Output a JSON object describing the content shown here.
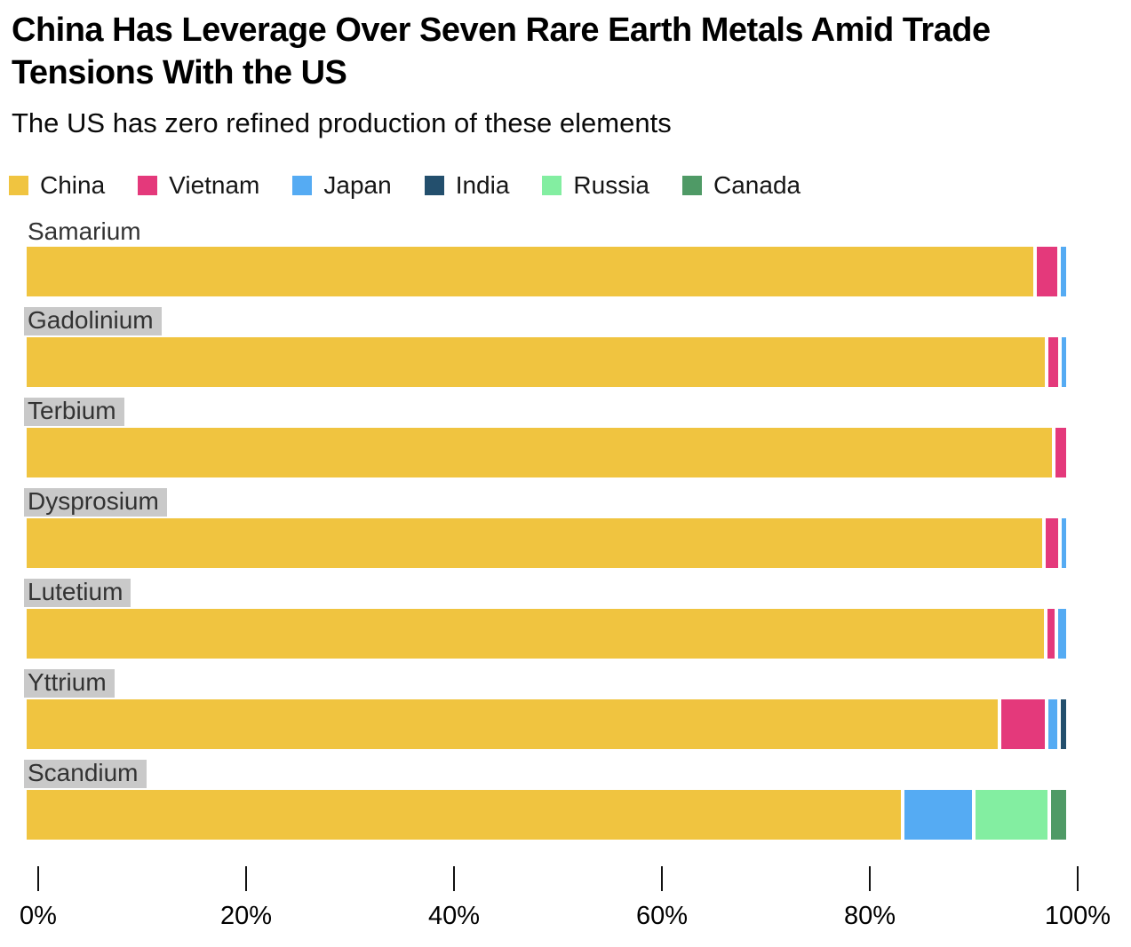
{
  "header": {
    "title": "China Has Leverage Over Seven Rare Earth Metals Amid Trade Tensions With the US",
    "title_lines": [
      "China Has Leverage Over Seven Rare Earth Metals Amid Trade",
      "Tensions With the US"
    ],
    "subtitle": "The US has zero refined production of these elements"
  },
  "colors": {
    "china": "#F0C440",
    "vietnam": "#E4397B",
    "japan": "#55ABF3",
    "india": "#234F6D",
    "russia": "#83EEA1",
    "canada": "#4F9A66",
    "label_highlight_bg": "#C9C9C9"
  },
  "chart_data": {
    "type": "bar",
    "orientation": "horizontal",
    "stacked": true,
    "unit": "percent",
    "title": "China Has Leverage Over Seven Rare Earth Metals Amid Trade Tensions With the US",
    "subtitle": "The US has zero refined production of these elements",
    "legend_position": "top",
    "grid": false,
    "categories": [
      "Samarium",
      "Gadolinium",
      "Terbium",
      "Dysprosium",
      "Lutetium",
      "Yttrium",
      "Scandium"
    ],
    "label_highlight": [
      false,
      true,
      true,
      true,
      true,
      true,
      true
    ],
    "series": [
      {
        "name": "China",
        "color": "#F0C440",
        "values": [
          97.5,
          98.6,
          99.0,
          98.4,
          98.5,
          94.1,
          85.0
        ]
      },
      {
        "name": "Vietnam",
        "color": "#E4397B",
        "values": [
          2.0,
          1.0,
          1.0,
          1.2,
          0.7,
          4.2,
          0
        ]
      },
      {
        "name": "Japan",
        "color": "#55ABF3",
        "values": [
          0.5,
          0.4,
          0,
          0.4,
          0.8,
          0.9,
          6.5
        ]
      },
      {
        "name": "India",
        "color": "#234F6D",
        "values": [
          0,
          0,
          0,
          0,
          0,
          0.5,
          0
        ]
      },
      {
        "name": "Russia",
        "color": "#83EEA1",
        "values": [
          0,
          0,
          0,
          0,
          0,
          0,
          7.0
        ]
      },
      {
        "name": "Canada",
        "color": "#4F9A66",
        "values": [
          0,
          0,
          0,
          0,
          0,
          0,
          1.5
        ]
      }
    ],
    "x_axis": {
      "range": [
        0,
        100
      ],
      "ticks": [
        "0%",
        "20%",
        "40%",
        "60%",
        "80%",
        "100%"
      ],
      "tick_values": [
        0,
        20,
        40,
        60,
        80,
        100
      ]
    }
  }
}
